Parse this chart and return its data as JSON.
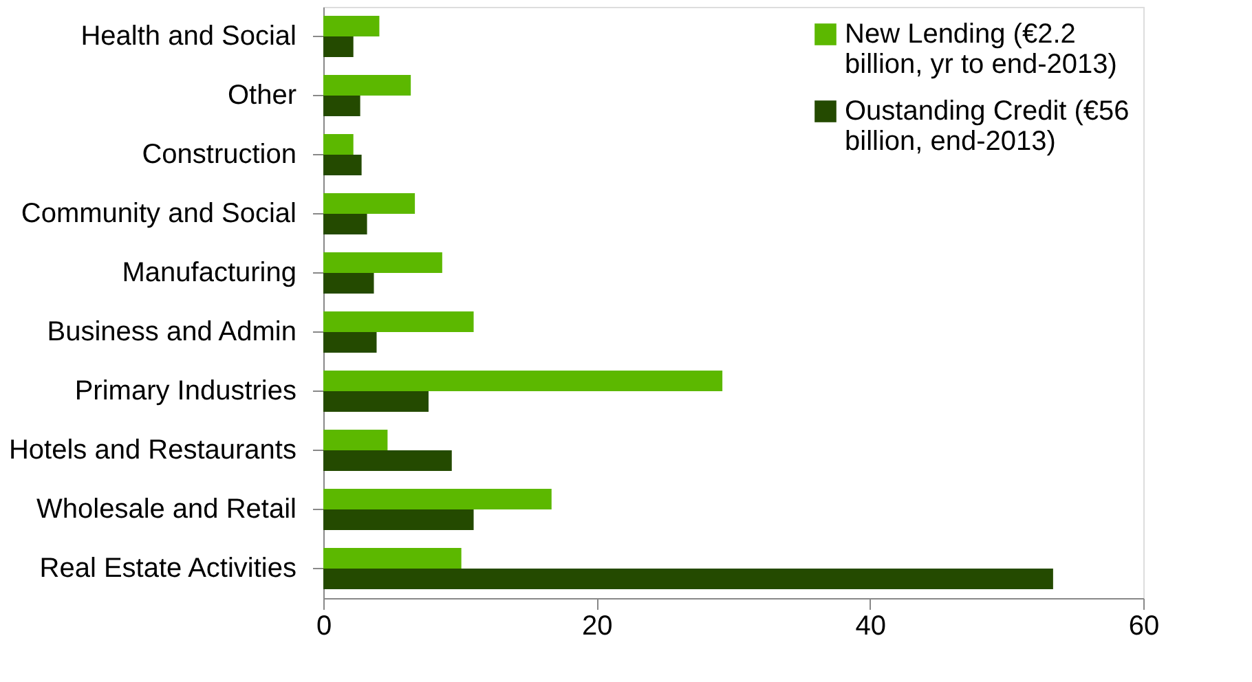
{
  "chart_data": {
    "type": "bar",
    "orientation": "horizontal",
    "categories": [
      "Health and Social",
      "Other",
      "Construction",
      "Community and Social",
      "Manufacturing",
      "Business and Admin",
      "Primary Industries",
      "Hotels and Restaurants",
      "Wholesale and Retail",
      "Real Estate Activities"
    ],
    "series": [
      {
        "name": "New Lending (€2.2 billion, yr to end-2013)",
        "color": "#5cb800",
        "values": [
          4.1,
          6.4,
          2.2,
          6.7,
          8.7,
          11.0,
          29.2,
          4.7,
          16.7,
          10.1
        ]
      },
      {
        "name": "Oustanding Credit (€56 billion, end-2013)",
        "color": "#244a00",
        "values": [
          2.2,
          2.7,
          2.8,
          3.2,
          3.7,
          3.9,
          7.7,
          9.4,
          11.0,
          53.4
        ]
      }
    ],
    "xlim": [
      0,
      60
    ],
    "xticks": [
      0,
      20,
      40,
      60
    ],
    "grid": false,
    "legend": "top right"
  }
}
